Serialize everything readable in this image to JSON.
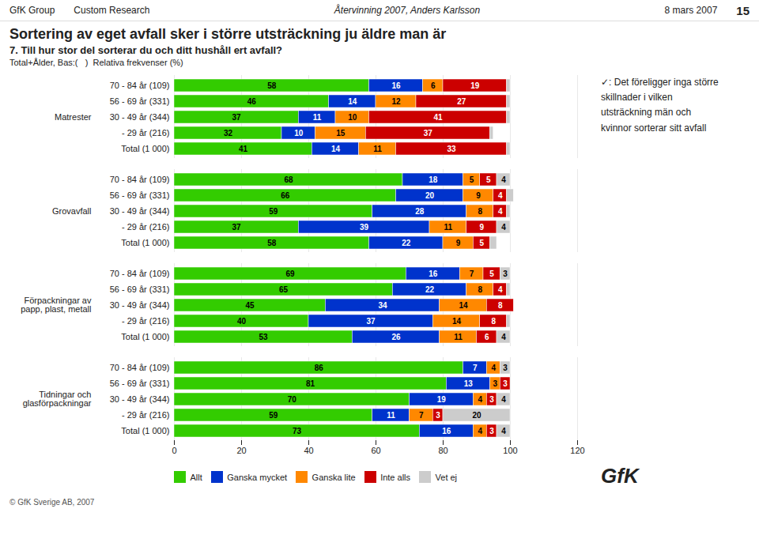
{
  "chart_data": {
    "type": "bar",
    "orientation": "horizontal",
    "stacked": true,
    "data_labels": true,
    "grid": true,
    "legend": "bottom",
    "title": "Sortering av eget avfall sker i större utsträckning ju äldre man är",
    "subtitle": "Total+Ålder, Bas:(   )  Relativa frekvenser (%)",
    "annotations": [
      "GfK Group",
      "Custom Research",
      "Återvinning 2007, Anders Karlsson",
      "8 mars 2007",
      "15",
      "7. Till hur stor del sorterar du och ditt hushåll ert avfall?",
      "✓: Det föreligger inga större",
      "skillnader i vilken",
      "utsträckning män och",
      "kvinnor sorterar sitt avfall",
      "GfK",
      "© GfK Sverige AB, 2007"
    ],
    "groups": [
      "Tidningar och\nglasförpackningar",
      "Förpackningar av\npapp, plast, metall",
      "Grovavfall",
      "Matrester"
    ],
    "categories": [
      "Total (1 000)",
      "- 29 år (216)",
      "30 - 49 år (344)",
      "56 - 69 år (331)",
      "70 - 84 år (109)"
    ],
    "series": [
      {
        "name": "Allt",
        "color": "#33cc00",
        "values": [
          [
            73,
            59,
            70,
            81,
            86
          ],
          [
            53,
            40,
            45,
            65,
            69
          ],
          [
            58,
            37,
            59,
            66,
            68
          ],
          [
            41,
            32,
            37,
            46,
            58
          ]
        ],
        "value_labels": [
          [
            "73",
            "59",
            "70",
            "81",
            "86"
          ],
          [
            "53",
            "40",
            "45",
            "65",
            "69"
          ],
          [
            "58",
            "37",
            "59",
            "66",
            "68"
          ],
          [
            "41",
            "32",
            "37",
            "46",
            "58"
          ]
        ]
      },
      {
        "name": "Ganska mycket",
        "color": "#0033cc",
        "values": [
          [
            16,
            11,
            19,
            13,
            7
          ],
          [
            26,
            37,
            34,
            22,
            16
          ],
          [
            22,
            39,
            28,
            20,
            18
          ],
          [
            14,
            10,
            11,
            14,
            16
          ]
        ],
        "value_labels": [
          [
            "16",
            "11",
            "19",
            "13",
            "7"
          ],
          [
            "26",
            "37",
            "34",
            "22",
            "16"
          ],
          [
            "22",
            "39",
            "28",
            "20",
            "18"
          ],
          [
            "14",
            "10",
            "11",
            "14",
            "16"
          ]
        ]
      },
      {
        "name": "Ganska lite",
        "color": "#ff8800",
        "values": [
          [
            4,
            7,
            4,
            3,
            4
          ],
          [
            11,
            14,
            14,
            8,
            7
          ],
          [
            9,
            11,
            8,
            9,
            5
          ],
          [
            11,
            15,
            10,
            12,
            6
          ]
        ],
        "value_labels": [
          [
            "4",
            "7",
            "4",
            "3",
            "4"
          ],
          [
            "11",
            "14",
            "14",
            "8",
            "7"
          ],
          [
            "9",
            "11",
            "8",
            "9",
            "5"
          ],
          [
            "11",
            "15",
            "10",
            "12",
            "6"
          ]
        ]
      },
      {
        "name": "Inte alls",
        "color": "#cc0000",
        "values": [
          [
            3,
            3,
            3,
            3,
            0
          ],
          [
            6,
            8,
            8,
            4,
            5
          ],
          [
            5,
            9,
            4,
            4,
            5
          ],
          [
            33,
            37,
            41,
            27,
            19
          ]
        ],
        "value_labels": [
          [
            "3",
            "3",
            "3",
            "3",
            null
          ],
          [
            "6",
            "8",
            "8",
            "4",
            "5"
          ],
          [
            "5",
            "9",
            "4",
            "4",
            "5"
          ],
          [
            "33",
            "37",
            "41",
            "27",
            "19"
          ]
        ]
      },
      {
        "name": "Vet ej",
        "color": "#cccccc",
        "values": [
          [
            4,
            20,
            4,
            0,
            3
          ],
          [
            4,
            1,
            0,
            1,
            3
          ],
          [
            2,
            4,
            1,
            2,
            4
          ],
          [
            1,
            1,
            1,
            1,
            1
          ]
        ],
        "value_labels": [
          [
            "4",
            "20",
            "4",
            null,
            "3"
          ],
          [
            "4",
            null,
            null,
            null,
            "3"
          ],
          [
            null,
            "4",
            null,
            null,
            "4"
          ],
          [
            null,
            null,
            null,
            null,
            null
          ]
        ]
      }
    ],
    "xlim": [
      0,
      120
    ],
    "xticks": [
      0,
      20,
      40,
      60,
      80,
      100,
      120
    ]
  }
}
